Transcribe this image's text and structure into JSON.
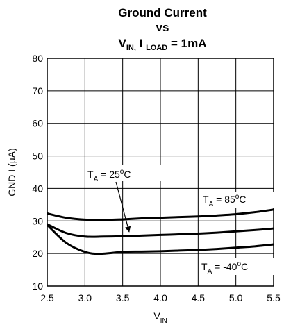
{
  "chart_data": {
    "type": "line",
    "title": {
      "line1": "Ground Current",
      "line2": "vs",
      "line3_main1": "V",
      "line3_sub1": "IN,",
      "line3_main2": " I ",
      "line3_sub2": "LOAD",
      "line3_main3": " = 1mA"
    },
    "xlabel": {
      "main": "V",
      "sub": "IN"
    },
    "ylabel": "GND I (µA)",
    "xlim": [
      2.5,
      5.5
    ],
    "ylim": [
      10,
      80
    ],
    "x_ticks": [
      "2.5",
      "3.0",
      "3.5",
      "4.0",
      "4.5",
      "5.0",
      "5.5"
    ],
    "y_ticks": [
      "10",
      "20",
      "30",
      "40",
      "50",
      "60",
      "70",
      "80"
    ],
    "grid": true,
    "series": [
      {
        "name": "TA = 85°C",
        "label": {
          "main": "T",
          "sub": "A",
          "rest": " = 85",
          "sup": "o",
          "unit": "C"
        },
        "x": [
          2.5,
          2.75,
          3.0,
          3.25,
          3.5,
          3.75,
          4.0,
          4.25,
          4.5,
          4.75,
          5.0,
          5.25,
          5.5
        ],
        "y": [
          32.3,
          31.0,
          30.4,
          30.3,
          30.5,
          30.8,
          31.0,
          31.2,
          31.4,
          31.7,
          32.1,
          32.7,
          33.5
        ]
      },
      {
        "name": "TA = 25°C",
        "label": {
          "main": "T",
          "sub": "A",
          "rest": " = 25",
          "sup": "o",
          "unit": "C"
        },
        "x": [
          2.5,
          2.75,
          3.0,
          3.25,
          3.5,
          3.75,
          4.0,
          4.25,
          4.5,
          4.75,
          5.0,
          5.25,
          5.5
        ],
        "y": [
          29.0,
          26.3,
          25.2,
          25.2,
          25.3,
          25.5,
          25.7,
          25.9,
          26.1,
          26.4,
          26.8,
          27.2,
          27.7
        ]
      },
      {
        "name": "TA = -40°C",
        "label": {
          "main": "T",
          "sub": "A",
          "rest": " = -40",
          "sup": "o",
          "unit": "C"
        },
        "x": [
          2.5,
          2.75,
          3.0,
          3.2,
          3.5,
          3.75,
          4.0,
          4.25,
          4.5,
          4.75,
          5.0,
          5.25,
          5.5
        ],
        "y": [
          28.8,
          23.3,
          20.5,
          19.9,
          20.5,
          20.6,
          20.7,
          20.9,
          21.1,
          21.4,
          21.8,
          22.2,
          22.8
        ]
      }
    ]
  },
  "colors": {
    "line": "#000000",
    "grid": "#000000",
    "background": "#ffffff"
  }
}
